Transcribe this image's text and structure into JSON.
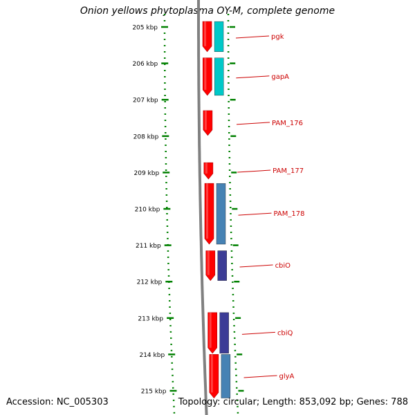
{
  "title": "Onion yellows phytoplasma OY-M, complete genome",
  "footer": {
    "accession": "Accession: NC_005303",
    "summary": "Topology: circular; Length: 853,092 bp; Genes: 788"
  },
  "colors": {
    "cds_forward": "#ff0000",
    "tick": "#008000",
    "label": "#cc0000",
    "backbone": "#808080"
  },
  "axis_ticks": [
    "205 kbp",
    "206 kbp",
    "207 kbp",
    "208 kbp",
    "209 kbp",
    "210 kbp",
    "211 kbp",
    "212 kbp",
    "213 kbp",
    "214 kbp",
    "215 kbp"
  ],
  "genes": [
    {
      "name": "pgk",
      "start_kbp": 204.85,
      "end_kbp": 205.68,
      "cog_color": "#00c8c8"
    },
    {
      "name": "gapA",
      "start_kbp": 205.85,
      "end_kbp": 206.88,
      "cog_color": "#00c8c8"
    },
    {
      "name": "PAM_176",
      "start_kbp": 207.3,
      "end_kbp": 207.98,
      "cog_color": null
    },
    {
      "name": "PAM_177",
      "start_kbp": 208.73,
      "end_kbp": 209.18,
      "cog_color": null
    },
    {
      "name": "PAM_178",
      "start_kbp": 209.3,
      "end_kbp": 210.97,
      "cog_color": "#4682b4"
    },
    {
      "name": "cbiO",
      "start_kbp": 211.15,
      "end_kbp": 211.97,
      "cog_color": "#3c3c96"
    },
    {
      "name": "cbiQ",
      "start_kbp": 212.85,
      "end_kbp": 213.97,
      "cog_color": "#3c3c96"
    },
    {
      "name": "glyA",
      "start_kbp": 214.0,
      "end_kbp": 215.2,
      "cog_color": "#4682b4"
    }
  ]
}
